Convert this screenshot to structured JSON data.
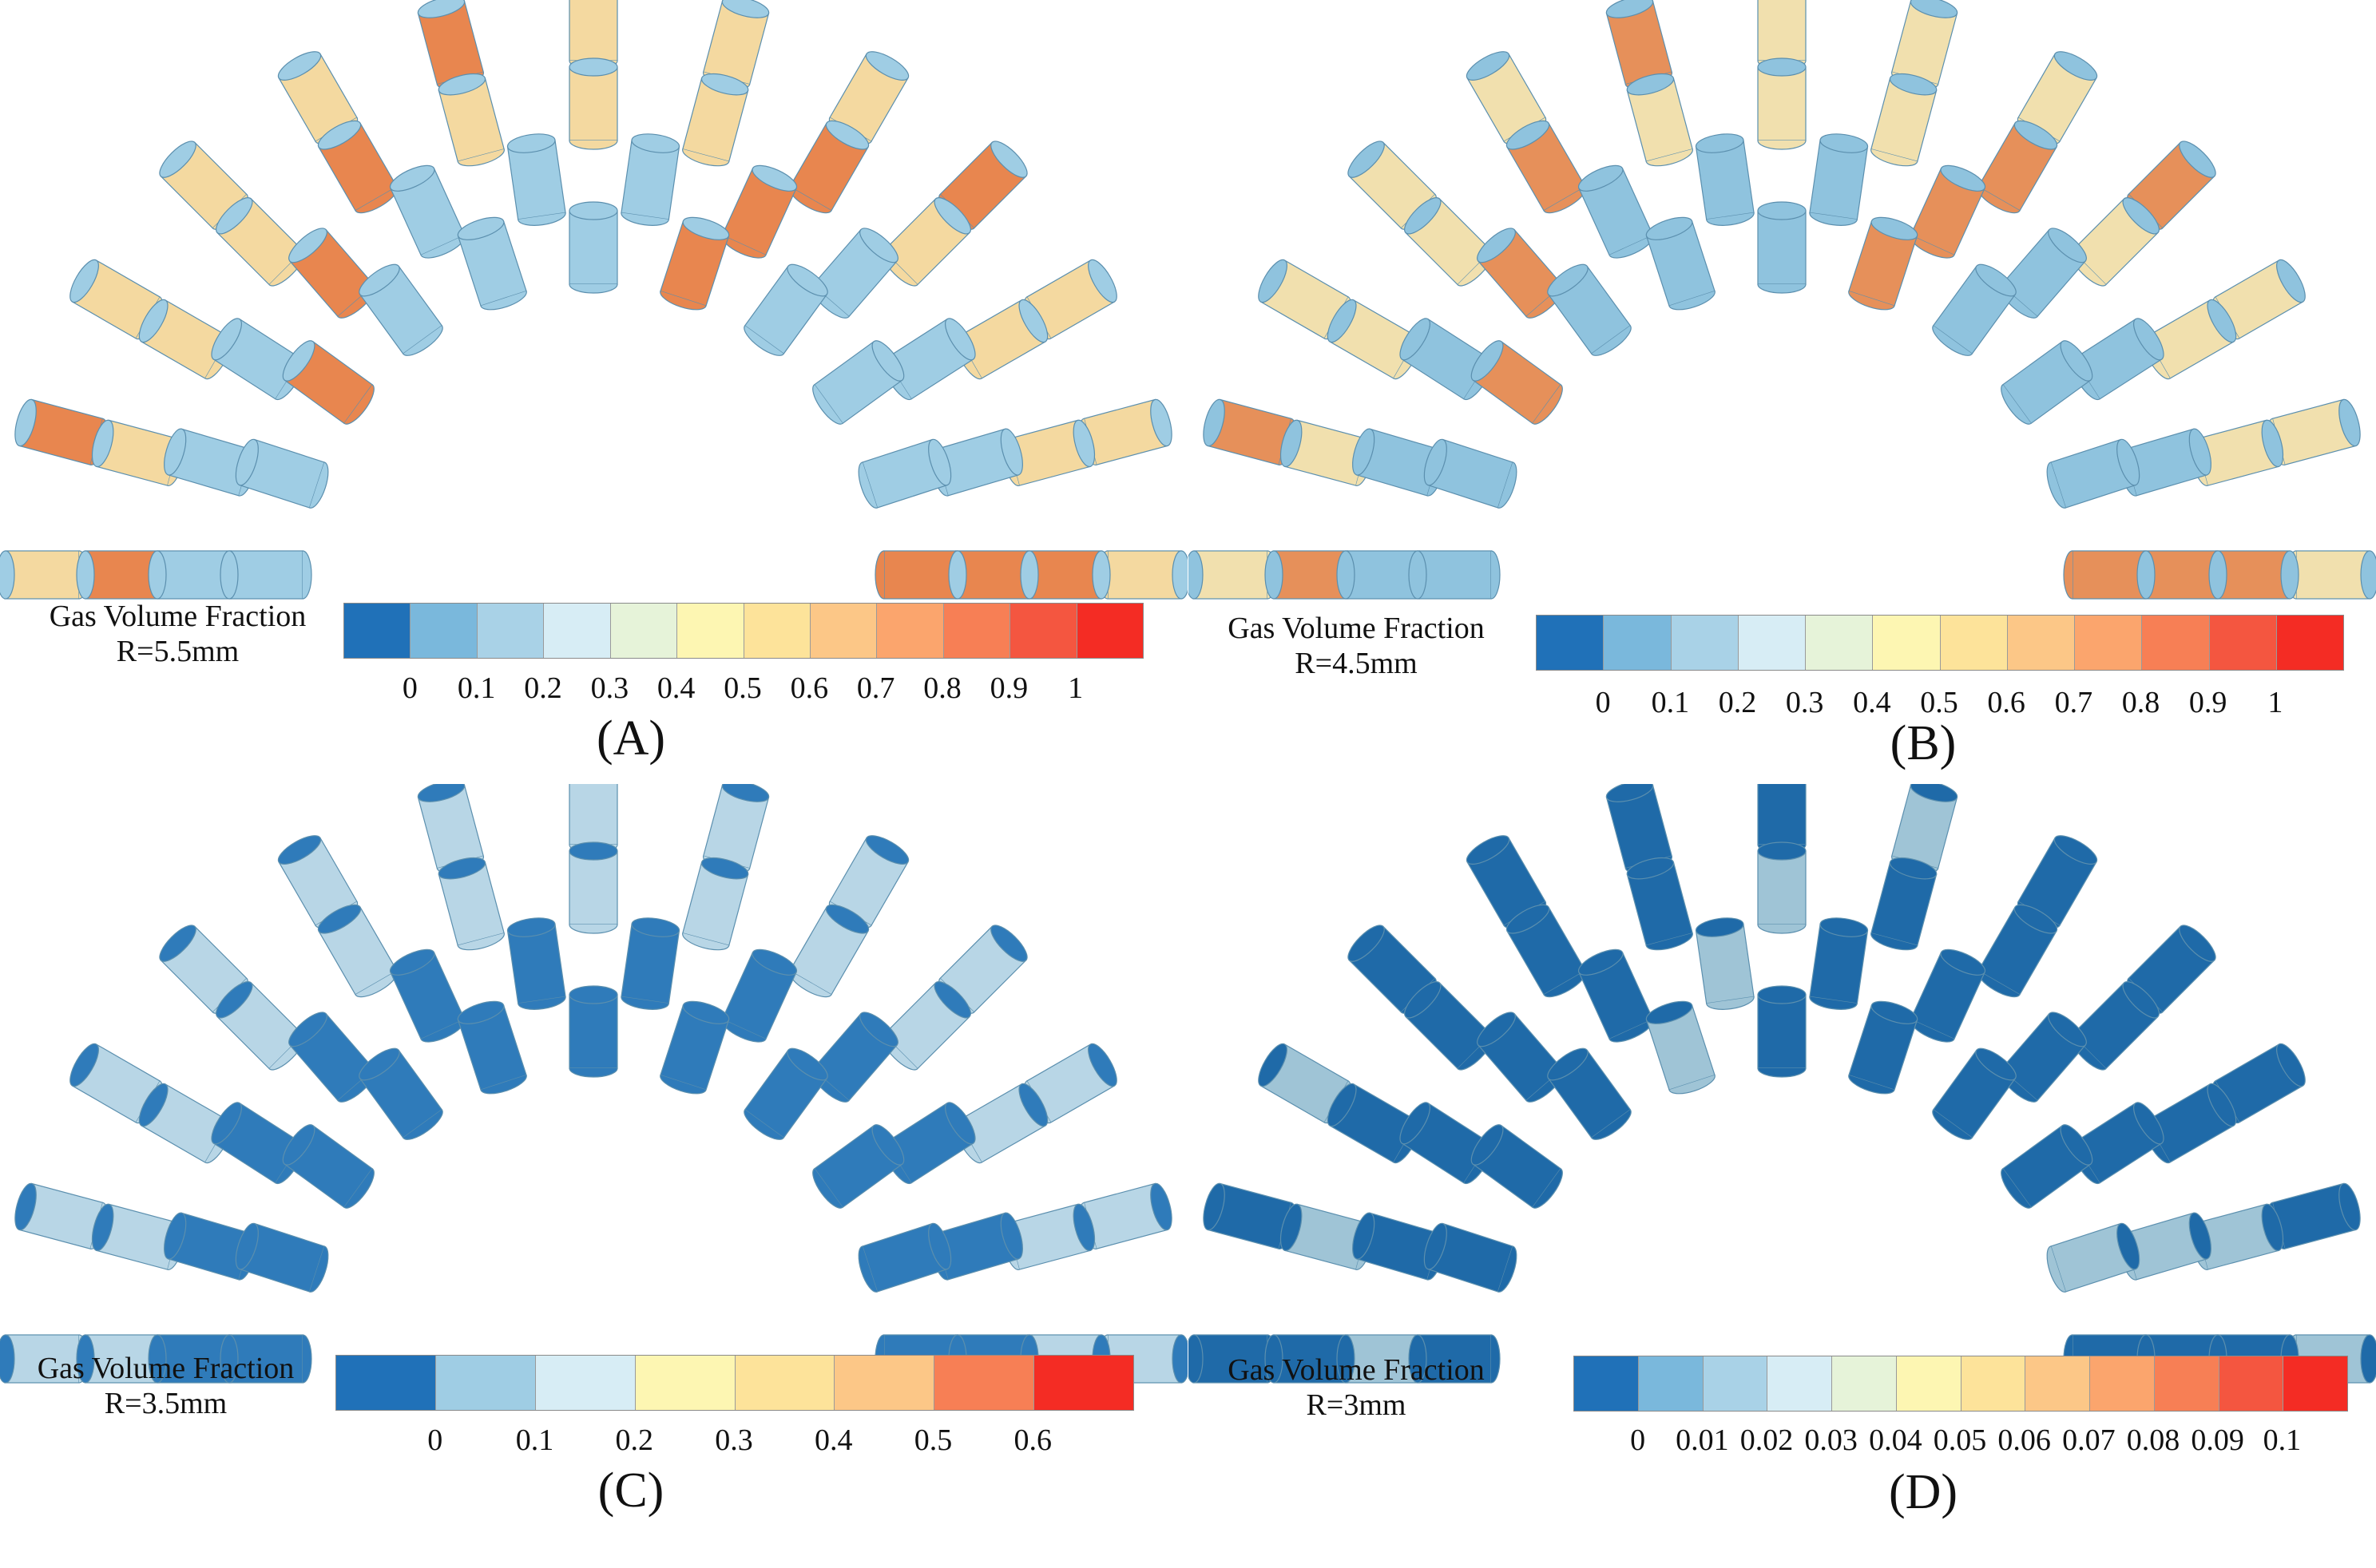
{
  "colorbar_title": "Gas Volume Fraction",
  "panels": [
    {
      "id": "A",
      "label": "(A)",
      "radius_label": "R=5.5mm",
      "ticks": [
        "0",
        "0.1",
        "0.2",
        "0.3",
        "0.4",
        "0.5",
        "0.6",
        "0.7",
        "0.8",
        "0.9",
        "1"
      ],
      "colors": [
        "#2071b8",
        "#7ab8dc",
        "#a9d2e7",
        "#d7edf5",
        "#e6f3d9",
        "#fdf6b2",
        "#fde39a",
        "#fcc787",
        "#fba56d",
        "#f77f55",
        "#f45640",
        "#f42c24"
      ],
      "cylinder_fill": "#f4d9a0",
      "cylinder_accent": "#e8864f",
      "cylinder_base": "#9fcde4"
    },
    {
      "id": "B",
      "label": "(B)",
      "radius_label": "R=4.5mm",
      "ticks": [
        "0",
        "0.1",
        "0.2",
        "0.3",
        "0.4",
        "0.5",
        "0.6",
        "0.7",
        "0.8",
        "0.9",
        "1"
      ],
      "colors": [
        "#2071b8",
        "#7ab8dc",
        "#a9d2e7",
        "#d7edf5",
        "#e6f3d9",
        "#fdf6b2",
        "#fde39a",
        "#fcc787",
        "#fba56d",
        "#f77f55",
        "#f45640",
        "#f42c24"
      ],
      "cylinder_fill": "#f1e0ae",
      "cylinder_accent": "#e6905a",
      "cylinder_base": "#8fc3de"
    },
    {
      "id": "C",
      "label": "(C)",
      "radius_label": "R=3.5mm",
      "ticks": [
        "0",
        "0.1",
        "0.2",
        "0.3",
        "0.4",
        "0.5",
        "0.6"
      ],
      "colors": [
        "#2071b8",
        "#9fcde4",
        "#d7edf5",
        "#fdf6b2",
        "#fde39a",
        "#fcc787",
        "#f77f55",
        "#f42c24"
      ],
      "cylinder_fill": "#b8d6e6",
      "cylinder_accent": "#2f7bba",
      "cylinder_base": "#2f7bba"
    },
    {
      "id": "D",
      "label": "(D)",
      "radius_label": "R=3mm",
      "ticks": [
        "0",
        "0.01",
        "0.02",
        "0.03",
        "0.04",
        "0.05",
        "0.06",
        "0.07",
        "0.08",
        "0.09",
        "0.1"
      ],
      "colors": [
        "#2071b8",
        "#7ab8dc",
        "#a9d2e7",
        "#d7edf5",
        "#e6f3d9",
        "#fdf6b2",
        "#fde39a",
        "#fcc787",
        "#fba56d",
        "#f77f55",
        "#f45640",
        "#f42c24"
      ],
      "cylinder_fill": "#1f6aa8",
      "cylinder_accent": "#9fc4d6",
      "cylinder_base": "#1f6aa8"
    }
  ]
}
